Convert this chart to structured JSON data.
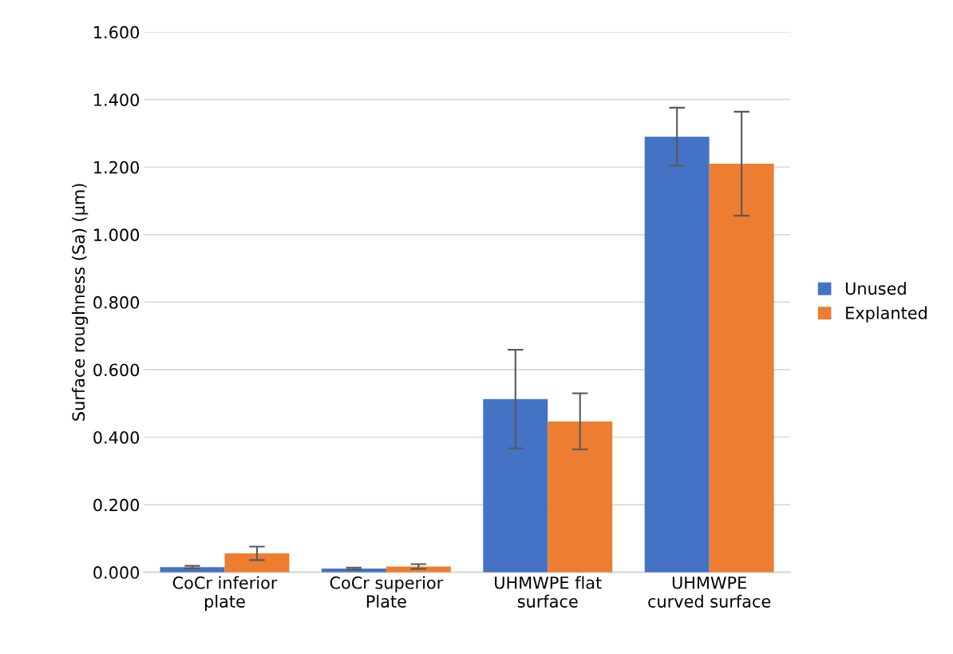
{
  "chart_data": {
    "type": "bar",
    "ylabel": "Surface roughness (Sa) (µm)",
    "categories": [
      "CoCr inferior\nplate",
      "CoCr superior\nPlate",
      "UHMWPE flat\nsurface",
      "UHMWPE\ncurved surface"
    ],
    "series": [
      {
        "name": "Unused",
        "color": "#4472c4",
        "values": [
          0.015,
          0.011,
          0.513,
          1.29
        ],
        "errors": [
          0.004,
          0.003,
          0.146,
          0.086
        ]
      },
      {
        "name": "Explanted",
        "color": "#ed7d31",
        "values": [
          0.056,
          0.017,
          0.447,
          1.21
        ],
        "errors": [
          0.02,
          0.007,
          0.083,
          0.154
        ]
      }
    ],
    "ylim": [
      0,
      1.6
    ],
    "yticks": [
      {
        "value": 0,
        "label": "0.000"
      },
      {
        "value": 0.2,
        "label": "0.200"
      },
      {
        "value": 0.4,
        "label": "0.400"
      },
      {
        "value": 0.6,
        "label": "0.600"
      },
      {
        "value": 0.8,
        "label": "0.800"
      },
      {
        "value": 1.0,
        "label": "1.000"
      },
      {
        "value": 1.2,
        "label": "1.200"
      },
      {
        "value": 1.4,
        "label": "1.400"
      },
      {
        "value": 1.6,
        "label": "1.600"
      }
    ],
    "grid": "y",
    "legend": "right"
  }
}
